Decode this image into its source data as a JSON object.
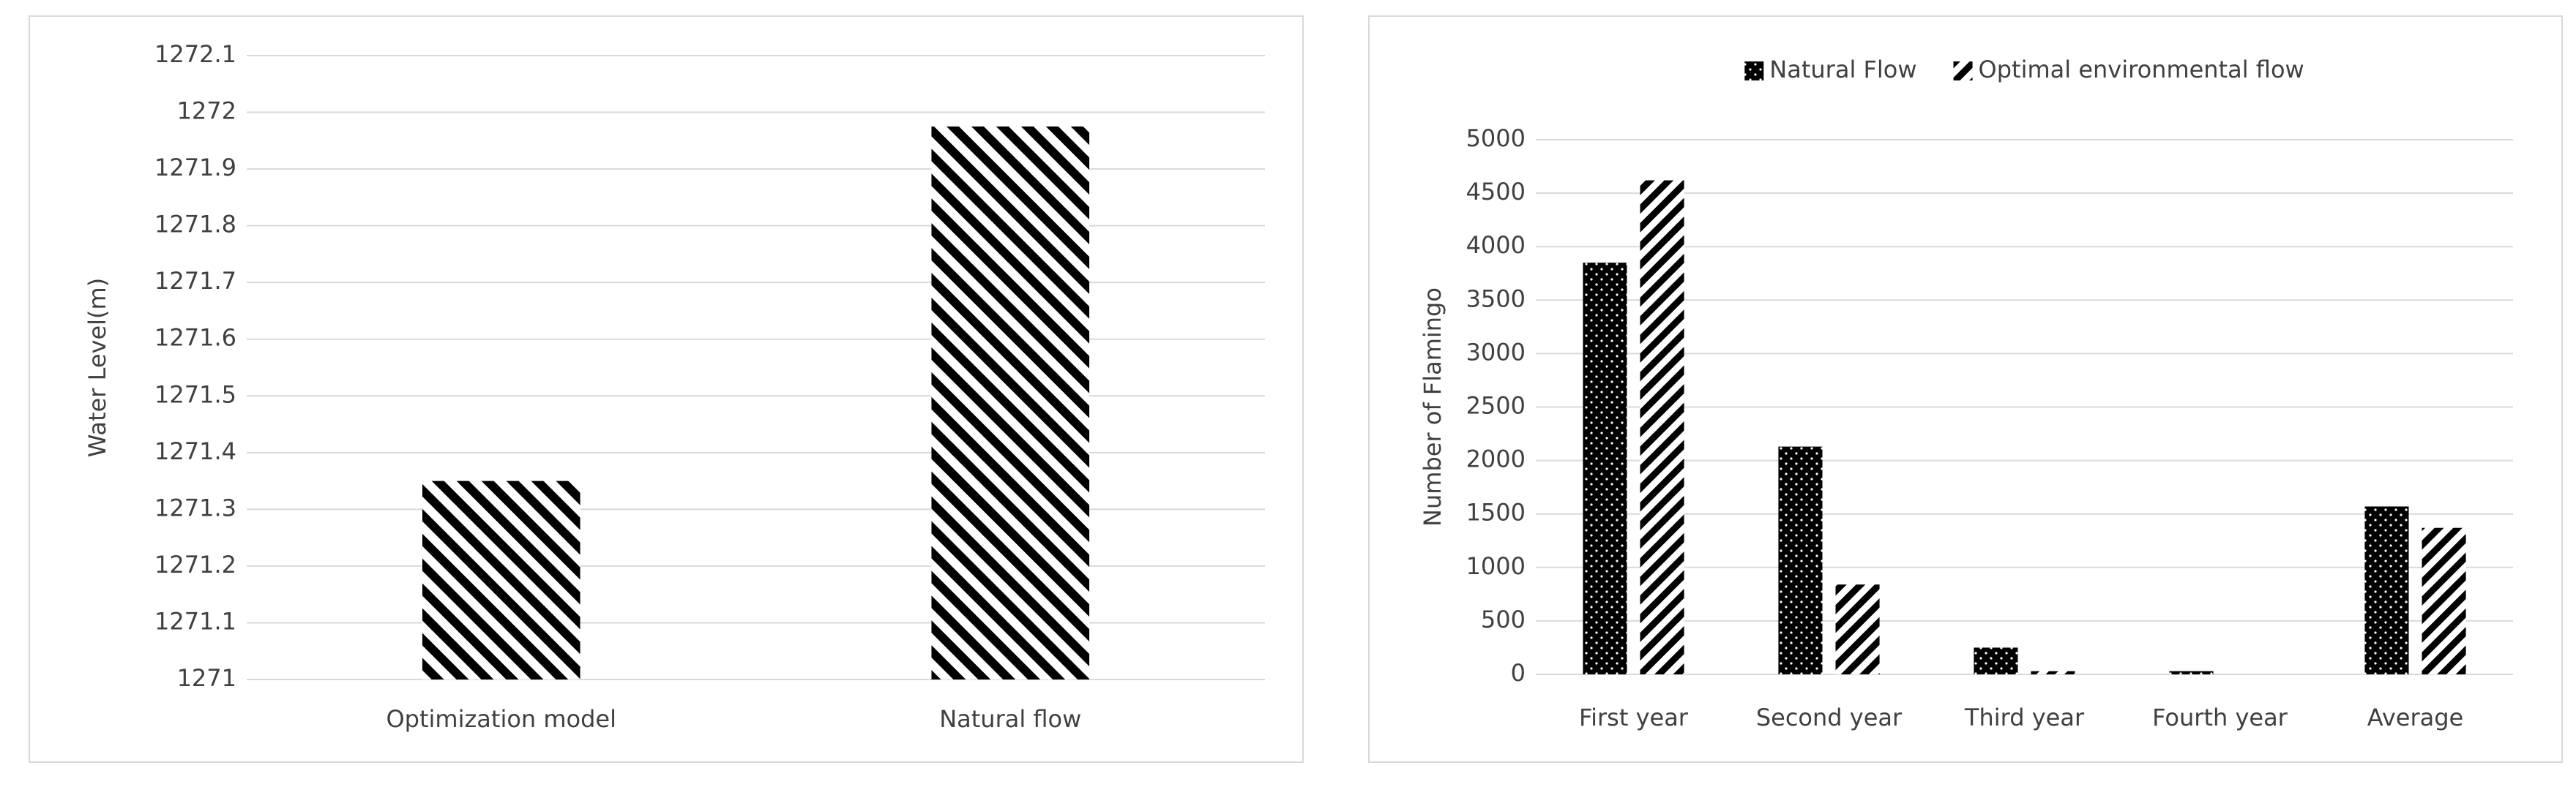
{
  "chart_data": [
    {
      "type": "bar",
      "y_label": "Water Level(m)",
      "categories": [
        "Optimization model",
        "Natural flow"
      ],
      "values": [
        1271.35,
        1271.975
      ],
      "color": "#000000",
      "pattern": "hatch-back",
      "ylim": [
        1271,
        1272.1
      ],
      "yticks": [
        1271,
        1271.1,
        1271.2,
        1271.3,
        1271.4,
        1271.5,
        1271.6,
        1271.7,
        1271.8,
        1271.9,
        1272,
        1272.1
      ],
      "grid": true
    },
    {
      "type": "bar",
      "y_label": "Number  of Flamingo",
      "categories": [
        "First year",
        "Second year",
        "Third year",
        "Fourth year",
        "Average"
      ],
      "series": [
        {
          "name": "Natural Flow",
          "color": "#000000",
          "pattern": "dots",
          "values": [
            3850,
            2130,
            250,
            30,
            1570
          ]
        },
        {
          "name": "Optimal environmental flow",
          "color": "#000000",
          "pattern": "hatch-fwd",
          "values": [
            4620,
            840,
            30,
            0,
            1370
          ]
        }
      ],
      "ylim": [
        0,
        5000
      ],
      "yticks": [
        0,
        500,
        1000,
        1500,
        2000,
        2500,
        3000,
        3500,
        4000,
        4500,
        5000
      ],
      "grid": true,
      "legend": "top"
    }
  ]
}
